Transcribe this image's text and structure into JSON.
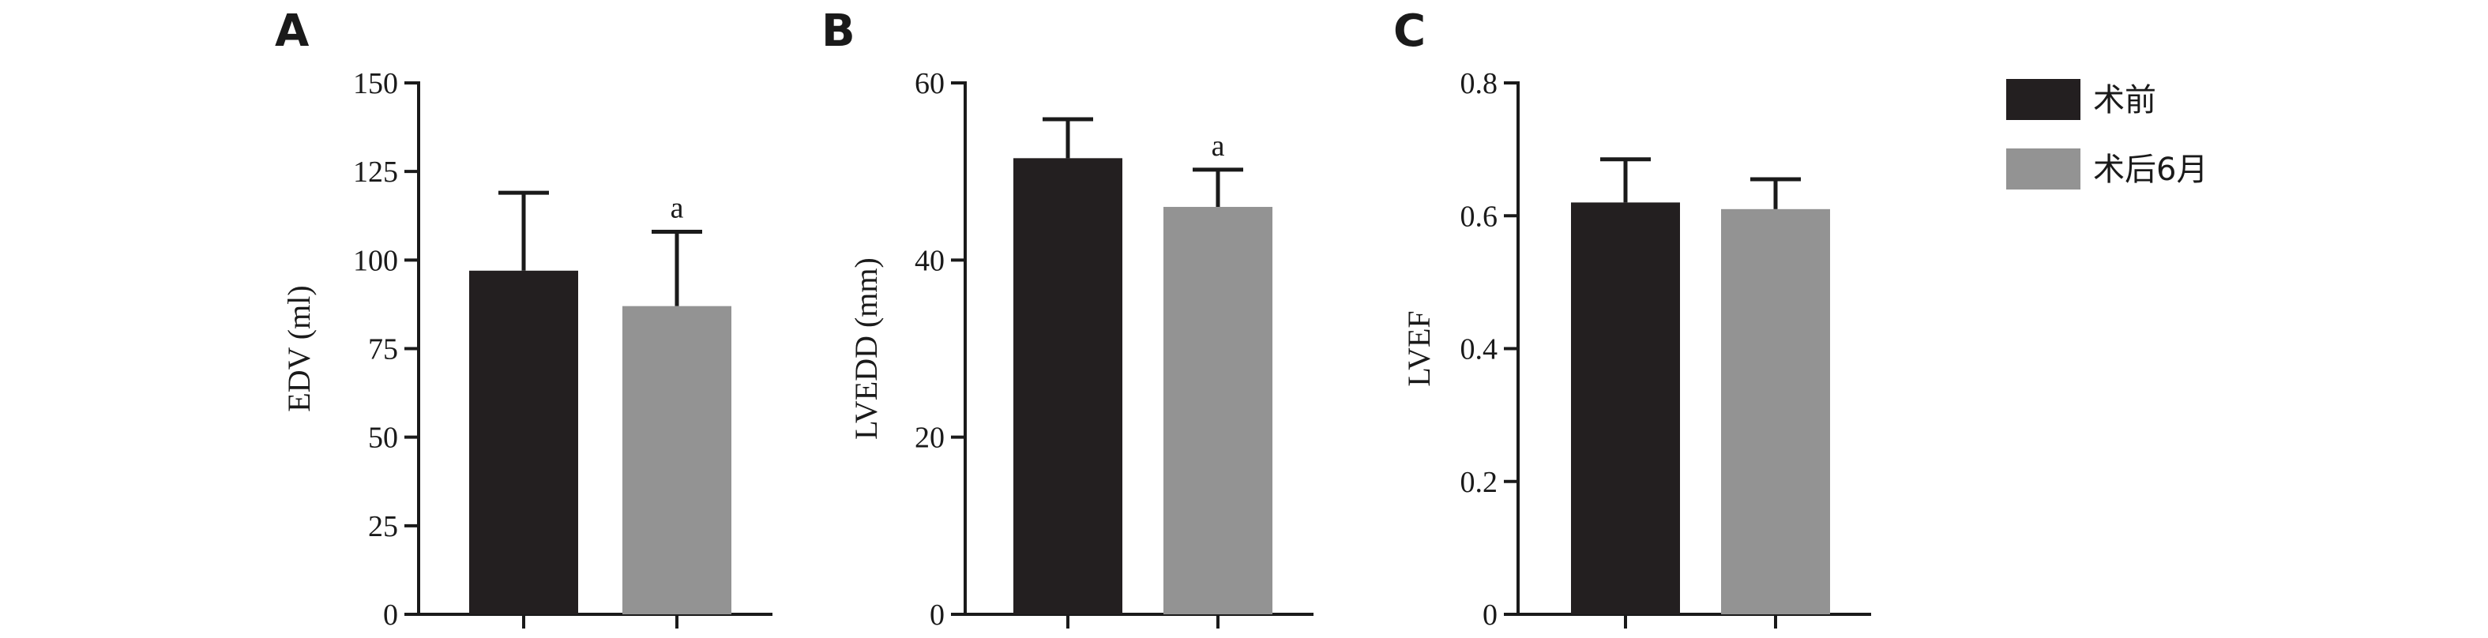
{
  "chart_data": [
    {
      "type": "bar",
      "panel": "A",
      "ylabel": "EDV (ml)",
      "ylim": [
        0,
        150
      ],
      "yticks": [
        0,
        25,
        50,
        75,
        100,
        125,
        150
      ],
      "categories": [
        "术前",
        "术后6月"
      ],
      "values": [
        97,
        87
      ],
      "errors": [
        22,
        21
      ],
      "annotations": [
        "",
        "a"
      ]
    },
    {
      "type": "bar",
      "panel": "B",
      "ylabel": "LVEDD (mm)",
      "ylim": [
        0,
        60
      ],
      "yticks": [
        0,
        20,
        40,
        60
      ],
      "categories": [
        "术前",
        "术后6月"
      ],
      "values": [
        51.5,
        46
      ],
      "errors": [
        4.4,
        4.2
      ],
      "annotations": [
        "",
        "a"
      ]
    },
    {
      "type": "bar",
      "panel": "C",
      "ylabel": "LVEF",
      "ylim": [
        0,
        0.8
      ],
      "yticks": [
        0,
        0.2,
        0.4,
        0.6,
        0.8
      ],
      "categories": [
        "术前",
        "术后6月"
      ],
      "values": [
        0.62,
        0.61
      ],
      "errors": [
        0.065,
        0.045
      ],
      "annotations": [
        "",
        ""
      ]
    }
  ],
  "legend": {
    "placement": "right",
    "items": [
      {
        "label": "术前",
        "color": "#231f20"
      },
      {
        "label": "术后6月",
        "color": "#939393"
      }
    ]
  },
  "colors": [
    "#231f20",
    "#939393"
  ]
}
